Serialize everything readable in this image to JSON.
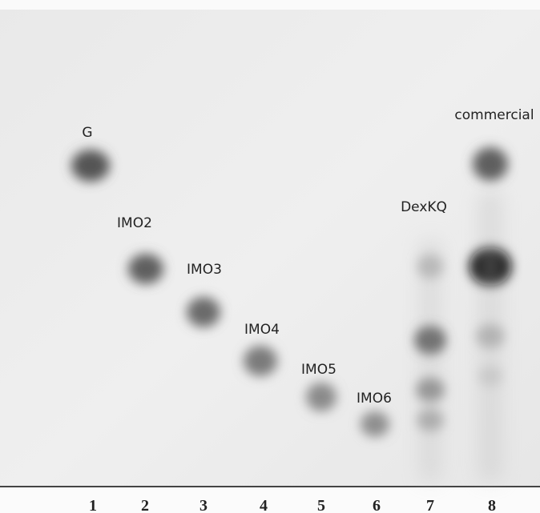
{
  "spot_labels": [
    "G",
    "IMO2",
    "IMO3",
    "IMO4",
    "IMO5",
    "IMO6",
    "DexKQ",
    "commercial"
  ],
  "lane_numbers": [
    "1",
    "2",
    "3",
    "4",
    "5",
    "6",
    "7",
    "8"
  ]
}
